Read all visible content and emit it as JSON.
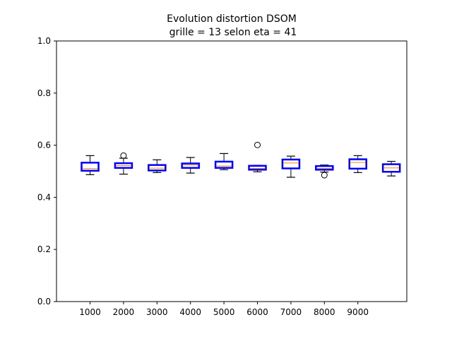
{
  "chart_data": {
    "type": "boxplot",
    "title": "Evolution distortion DSOM",
    "subtitle": "grille = 13 selon eta = 41",
    "xlabel": "",
    "ylabel": "",
    "ylim": [
      0.0,
      1.0
    ],
    "yticks": [
      "0.0",
      "0.2",
      "0.4",
      "0.6",
      "0.8",
      "1.0"
    ],
    "xticks": [
      "1000",
      "2000",
      "3000",
      "4000",
      "5000",
      "6000",
      "7000",
      "8000",
      "9000"
    ],
    "grid": false,
    "colors": {
      "box": "#0000ff",
      "median": "#ff7f0e",
      "whisker": "#000000",
      "axes": "#000000"
    },
    "boxes": [
      {
        "whislo": 0.487,
        "q1": 0.502,
        "med": 0.51,
        "q3": 0.533,
        "whishi": 0.56,
        "fliers": []
      },
      {
        "whislo": 0.489,
        "q1": 0.513,
        "med": 0.522,
        "q3": 0.531,
        "whishi": 0.55,
        "fliers": [
          0.56
        ]
      },
      {
        "whislo": 0.495,
        "q1": 0.503,
        "med": 0.512,
        "q3": 0.524,
        "whishi": 0.544,
        "fliers": []
      },
      {
        "whislo": 0.493,
        "q1": 0.513,
        "med": 0.524,
        "q3": 0.53,
        "whishi": 0.553,
        "fliers": []
      },
      {
        "whislo": 0.506,
        "q1": 0.513,
        "med": 0.52,
        "q3": 0.537,
        "whishi": 0.568,
        "fliers": []
      },
      {
        "whislo": 0.498,
        "q1": 0.506,
        "med": 0.511,
        "q3": 0.521,
        "whishi": 0.523,
        "fliers": [
          0.601
        ]
      },
      {
        "whislo": 0.477,
        "q1": 0.511,
        "med": 0.532,
        "q3": 0.545,
        "whishi": 0.558,
        "fliers": []
      },
      {
        "whislo": 0.497,
        "q1": 0.506,
        "med": 0.511,
        "q3": 0.52,
        "whishi": 0.524,
        "fliers": [
          0.485
        ]
      },
      {
        "whislo": 0.495,
        "q1": 0.51,
        "med": 0.534,
        "q3": 0.546,
        "whishi": 0.56,
        "fliers": []
      },
      {
        "whislo": 0.482,
        "q1": 0.498,
        "med": 0.513,
        "q3": 0.527,
        "whishi": 0.538,
        "fliers": []
      }
    ]
  }
}
